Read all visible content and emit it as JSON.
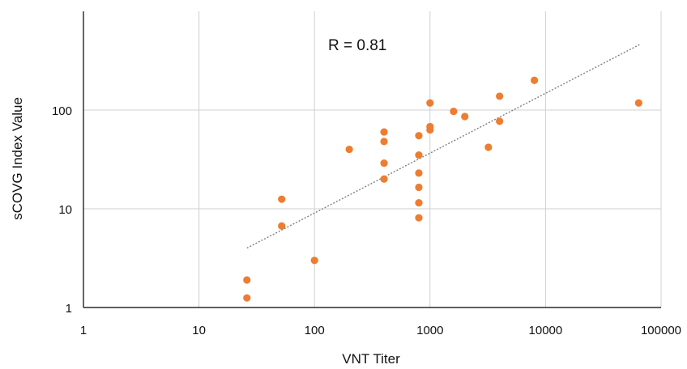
{
  "chart_data": {
    "type": "scatter",
    "title": "",
    "xlabel": "VNT Titer",
    "ylabel": "sCOVG Index Value",
    "x_scale": "log",
    "y_scale": "log",
    "xlim": [
      1,
      100000
    ],
    "ylim": [
      1,
      1000
    ],
    "x_ticks": [
      "1",
      "10",
      "100",
      "1000",
      "10000",
      "100000"
    ],
    "y_ticks": [
      "1",
      "10",
      "100"
    ],
    "grid": true,
    "annotation": "R = 0.81",
    "trendline": {
      "type": "power",
      "x_start": 26,
      "y_start": 4.0,
      "x_end": 65000,
      "y_end": 460
    },
    "series": [
      {
        "color": "#ED7D31",
        "points": [
          {
            "x": 26,
            "y": 1.9
          },
          {
            "x": 26,
            "y": 1.25
          },
          {
            "x": 52,
            "y": 12.5
          },
          {
            "x": 52,
            "y": 6.7
          },
          {
            "x": 100,
            "y": 3.0
          },
          {
            "x": 200,
            "y": 40
          },
          {
            "x": 400,
            "y": 60
          },
          {
            "x": 400,
            "y": 48
          },
          {
            "x": 400,
            "y": 29
          },
          {
            "x": 400,
            "y": 20
          },
          {
            "x": 800,
            "y": 55
          },
          {
            "x": 800,
            "y": 35
          },
          {
            "x": 800,
            "y": 23
          },
          {
            "x": 800,
            "y": 16.5
          },
          {
            "x": 800,
            "y": 11.5
          },
          {
            "x": 800,
            "y": 8.1
          },
          {
            "x": 1000,
            "y": 118
          },
          {
            "x": 1000,
            "y": 68
          },
          {
            "x": 1000,
            "y": 63
          },
          {
            "x": 1600,
            "y": 97
          },
          {
            "x": 2000,
            "y": 86
          },
          {
            "x": 3200,
            "y": 42
          },
          {
            "x": 4000,
            "y": 138
          },
          {
            "x": 4000,
            "y": 77
          },
          {
            "x": 8000,
            "y": 200
          },
          {
            "x": 64000,
            "y": 118
          }
        ]
      }
    ]
  }
}
